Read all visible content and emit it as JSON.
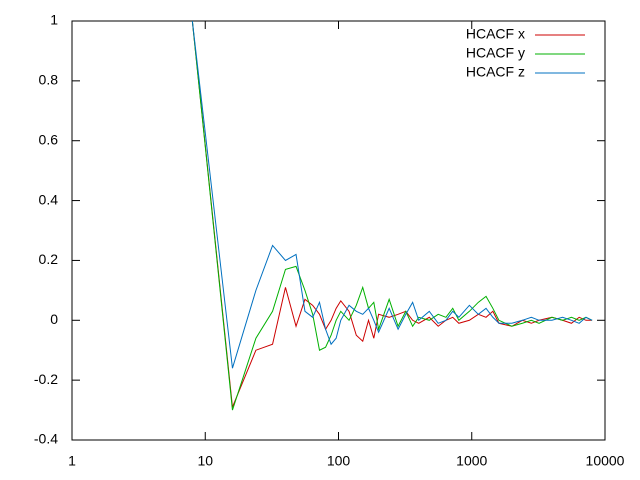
{
  "chart_data": {
    "type": "line",
    "x": [
      8,
      16,
      24,
      32,
      40,
      48,
      56,
      64,
      72,
      80,
      88,
      96,
      104,
      120,
      136,
      152,
      168,
      184,
      200,
      240,
      280,
      320,
      360,
      400,
      480,
      560,
      640,
      720,
      800,
      960,
      1120,
      1280,
      1440,
      1600,
      2000,
      2400,
      2800,
      3200,
      4000,
      4800,
      5600,
      6400,
      7200,
      8000
    ],
    "series": [
      {
        "name": "HCACF x",
        "color": "#cc0000",
        "values": [
          1,
          -0.29,
          -0.1,
          -0.08,
          0.11,
          -0.02,
          0.07,
          0.05,
          0.02,
          -0.03,
          0.0,
          0.04,
          0.065,
          0.03,
          -0.05,
          -0.07,
          0.0,
          -0.06,
          0.02,
          0.01,
          0.02,
          0.03,
          0.0,
          -0.01,
          0.01,
          -0.02,
          0.0,
          0.01,
          -0.01,
          0.0,
          0.02,
          0.01,
          0.03,
          -0.01,
          -0.02,
          0.0,
          -0.01,
          0.0,
          0.01,
          0.0,
          -0.01,
          0.01,
          0.0,
          0.0
        ]
      },
      {
        "name": "HCACF y",
        "color": "#00b000",
        "values": [
          1,
          -0.3,
          -0.06,
          0.03,
          0.17,
          0.18,
          0.1,
          0.02,
          -0.1,
          -0.09,
          -0.05,
          0.0,
          0.03,
          0.0,
          0.05,
          0.11,
          0.04,
          0.06,
          -0.03,
          0.07,
          -0.02,
          0.03,
          -0.02,
          0.01,
          0.0,
          0.02,
          0.01,
          0.04,
          0.0,
          0.03,
          0.06,
          0.08,
          0.04,
          0.0,
          -0.02,
          -0.01,
          0.0,
          -0.01,
          0.01,
          0.0,
          0.01,
          0.0,
          0.01,
          0.0
        ]
      },
      {
        "name": "HCACF z",
        "color": "#0070c0",
        "values": [
          1,
          -0.16,
          0.1,
          0.25,
          0.2,
          0.22,
          0.03,
          0.01,
          0.06,
          -0.03,
          -0.08,
          -0.06,
          0.0,
          0.05,
          0.03,
          0.02,
          0.04,
          0.0,
          -0.04,
          0.04,
          -0.03,
          0.02,
          0.06,
          0.0,
          0.03,
          -0.01,
          0.0,
          0.03,
          0.01,
          0.05,
          0.02,
          0.04,
          0.01,
          -0.01,
          -0.01,
          0.0,
          0.01,
          0.0,
          0.0,
          0.01,
          0.0,
          -0.01,
          0.01,
          0.0
        ]
      }
    ],
    "xlim": [
      1,
      10000
    ],
    "xticks": [
      1,
      10,
      100,
      1000,
      10000
    ],
    "xlog": true,
    "ylim": [
      -0.4,
      1
    ],
    "yticks": [
      -0.4,
      -0.2,
      0,
      0.2,
      0.4,
      0.6,
      0.8,
      1
    ],
    "grid": false,
    "legend": "top-right"
  }
}
